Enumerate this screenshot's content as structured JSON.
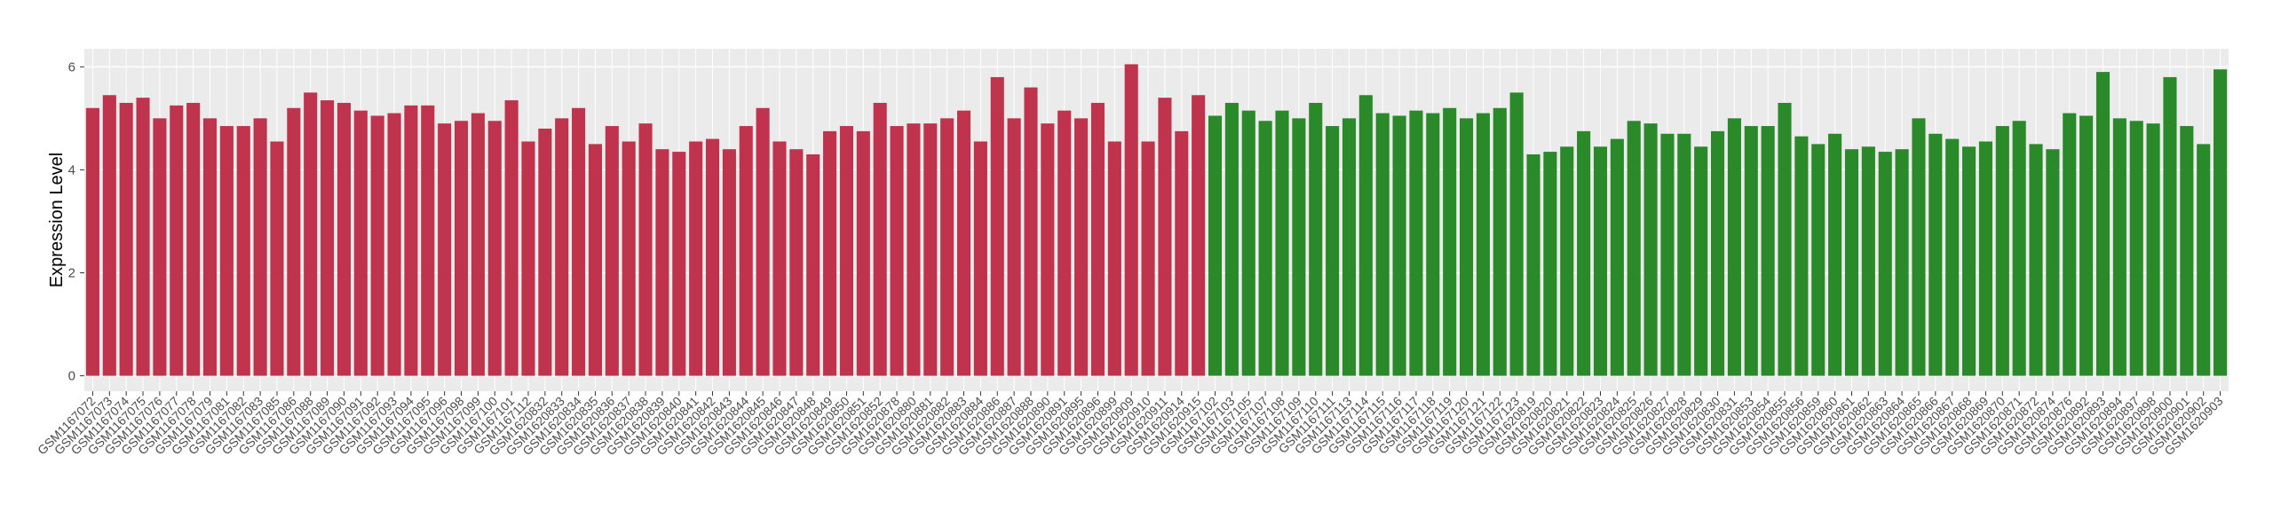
{
  "chart_data": {
    "type": "bar",
    "y_label": "Expression Level",
    "categories": [
      "GSM1167072",
      "GSM1167073",
      "GSM1167074",
      "GSM1167075",
      "GSM1167076",
      "GSM1167077",
      "GSM1167078",
      "GSM1167079",
      "GSM1167081",
      "GSM1167082",
      "GSM1167083",
      "GSM1167085",
      "GSM1167086",
      "GSM1167088",
      "GSM1167089",
      "GSM1167090",
      "GSM1167091",
      "GSM1167092",
      "GSM1167093",
      "GSM1167094",
      "GSM1167095",
      "GSM1167096",
      "GSM1167098",
      "GSM1167099",
      "GSM1167100",
      "GSM1167101",
      "GSM1167112",
      "GSM1620832",
      "GSM1620833",
      "GSM1620834",
      "GSM1620835",
      "GSM1620836",
      "GSM1620837",
      "GSM1620838",
      "GSM1620839",
      "GSM1620840",
      "GSM1620841",
      "GSM1620842",
      "GSM1620843",
      "GSM1620844",
      "GSM1620845",
      "GSM1620846",
      "GSM1620847",
      "GSM1620848",
      "GSM1620849",
      "GSM1620850",
      "GSM1620851",
      "GSM1620852",
      "GSM1620878",
      "GSM1620880",
      "GSM1620881",
      "GSM1620882",
      "GSM1620883",
      "GSM1620884",
      "GSM1620886",
      "GSM1620887",
      "GSM1620888",
      "GSM1620890",
      "GSM1620891",
      "GSM1620895",
      "GSM1620896",
      "GSM1620899",
      "GSM1620909",
      "GSM1620910",
      "GSM1620911",
      "GSM1620914",
      "GSM1620915",
      "GSM1167102",
      "GSM1167103",
      "GSM1167105",
      "GSM1167107",
      "GSM1167108",
      "GSM1167109",
      "GSM1167110",
      "GSM1167111",
      "GSM1167113",
      "GSM1167114",
      "GSM1167115",
      "GSM1167116",
      "GSM1167117",
      "GSM1167118",
      "GSM1167119",
      "GSM1167120",
      "GSM1167121",
      "GSM1167122",
      "GSM1167123",
      "GSM1620819",
      "GSM1620820",
      "GSM1620821",
      "GSM1620822",
      "GSM1620823",
      "GSM1620824",
      "GSM1620825",
      "GSM1620826",
      "GSM1620827",
      "GSM1620828",
      "GSM1620829",
      "GSM1620830",
      "GSM1620831",
      "GSM1620853",
      "GSM1620854",
      "GSM1620855",
      "GSM1620856",
      "GSM1620859",
      "GSM1620860",
      "GSM1620861",
      "GSM1620862",
      "GSM1620863",
      "GSM1620864",
      "GSM1620865",
      "GSM1620866",
      "GSM1620867",
      "GSM1620868",
      "GSM1620869",
      "GSM1620870",
      "GSM1620871",
      "GSM1620872",
      "GSM1620874",
      "GSM1620876",
      "GSM1620892",
      "GSM1620893",
      "GSM1620894",
      "GSM1620897",
      "GSM1620898",
      "GSM1620900",
      "GSM1620901",
      "GSM1620902",
      "GSM1620903"
    ],
    "series": [
      {
        "color": "#c0334d",
        "values": [
          5.2,
          5.45,
          5.3,
          5.4,
          5.0,
          5.25,
          5.3,
          5.0,
          4.85,
          4.85,
          5.0,
          4.55,
          5.2,
          5.5,
          5.35,
          5.3,
          5.15,
          5.05,
          5.1,
          5.25,
          5.25,
          4.9,
          4.95,
          5.1,
          4.95,
          5.35,
          4.55,
          4.8,
          5.0,
          5.2,
          4.5,
          4.85,
          4.55,
          4.9,
          4.4,
          4.35,
          4.55,
          4.6,
          4.4,
          4.85,
          5.2,
          4.55,
          4.4,
          4.3,
          4.75,
          4.85,
          4.75,
          5.3,
          4.85,
          4.9,
          4.9,
          5.0,
          5.15,
          4.55,
          5.8,
          5.0,
          5.6,
          4.9,
          5.15,
          5.0,
          5.3,
          4.55,
          6.05,
          4.55,
          5.4,
          4.75,
          5.45,
          null,
          null,
          null,
          null,
          null,
          null,
          null,
          null,
          null,
          null,
          null,
          null,
          null,
          null,
          null,
          null,
          null,
          null,
          null,
          null,
          null,
          null,
          null,
          null,
          null,
          null,
          null,
          null,
          null,
          null,
          null,
          null,
          null,
          null,
          null,
          null,
          null,
          null,
          null,
          null,
          null,
          null,
          null,
          null,
          null,
          null,
          null,
          null,
          null,
          null,
          null,
          null,
          null,
          null,
          null,
          null,
          null,
          null,
          null,
          null,
          null
        ]
      },
      {
        "color": "#2a8a2a",
        "values": [
          null,
          null,
          null,
          null,
          null,
          null,
          null,
          null,
          null,
          null,
          null,
          null,
          null,
          null,
          null,
          null,
          null,
          null,
          null,
          null,
          null,
          null,
          null,
          null,
          null,
          null,
          null,
          null,
          null,
          null,
          null,
          null,
          null,
          null,
          null,
          null,
          null,
          null,
          null,
          null,
          null,
          null,
          null,
          null,
          null,
          null,
          null,
          null,
          null,
          null,
          null,
          null,
          null,
          null,
          null,
          null,
          null,
          null,
          null,
          null,
          null,
          null,
          null,
          null,
          null,
          null,
          null,
          5.05,
          5.3,
          5.15,
          4.95,
          5.15,
          5.0,
          5.3,
          4.85,
          5.0,
          5.45,
          5.1,
          5.05,
          5.15,
          5.1,
          5.2,
          5.0,
          5.1,
          5.2,
          5.5,
          4.3,
          4.35,
          4.45,
          4.75,
          4.45,
          4.6,
          4.95,
          4.9,
          4.7,
          4.7,
          4.45,
          4.75,
          5.0,
          4.85,
          4.85,
          5.3,
          4.65,
          4.5,
          4.7,
          4.4,
          4.45,
          4.35,
          4.4,
          5.0,
          4.7,
          4.6,
          4.45,
          4.55,
          4.85,
          4.95,
          4.5,
          4.4,
          5.1,
          5.05,
          5.9,
          5.0,
          4.95,
          4.9,
          5.8,
          4.85,
          4.5,
          5.95
        ]
      }
    ],
    "ylim": [
      -0.3,
      6.35
    ],
    "yticks": [
      0,
      2,
      4,
      6
    ],
    "grid": true
  }
}
